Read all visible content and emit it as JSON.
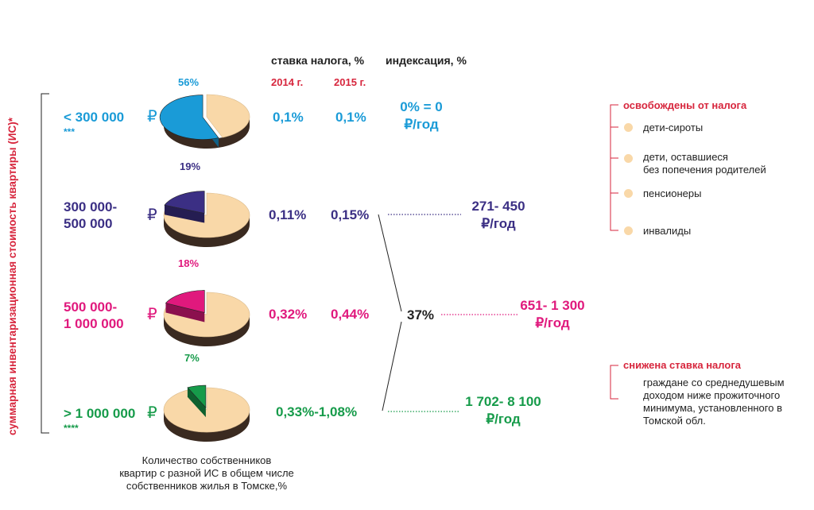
{
  "headers": {
    "rate": "ставка налога, %",
    "indexation": "индексация, %",
    "year2014": "2014 г.",
    "year2015": "2015 г."
  },
  "vertical_label": "суммарная инвентаризационная стоимость квартиры (ИС)*",
  "ruble_sign": "₽",
  "middle_percent": "37%",
  "caption_lines": [
    "Количество собственников",
    "квартир с разной ИС в общем числе",
    "собственников  жилья в Томске,%"
  ],
  "colors": {
    "cyan": "#1a9bd7",
    "navy": "#3b2f84",
    "magenta": "#e0197d",
    "green": "#169b4a",
    "peach": "#f9d8a8",
    "red": "#d7263d"
  },
  "chart_data": {
    "type": "pie",
    "rows": [
      {
        "range_lines": [
          "< 300 000"
        ],
        "stars": "***",
        "share": 56,
        "share_label": "56%",
        "rate_2014": "0,1%",
        "rate_2015": "0,1%",
        "indexation_lines": [
          "0% = 0",
          "₽/год"
        ],
        "color": "#1a9bd7"
      },
      {
        "range_lines": [
          "300 000-",
          "500 000"
        ],
        "stars": "",
        "share": 19,
        "share_label": "19%",
        "rate_2014": "0,11%",
        "rate_2015": "0,15%",
        "indexation_lines": [
          "271- 450",
          "₽/год"
        ],
        "color": "#3b2f84"
      },
      {
        "range_lines": [
          "500 000-",
          "1 000 000"
        ],
        "stars": "",
        "share": 18,
        "share_label": "18%",
        "rate_2014": "0,32%",
        "rate_2015": "0,44%",
        "indexation_lines": [
          "651- 1 300",
          "₽/год"
        ],
        "color": "#e0197d"
      },
      {
        "range_lines": [
          "> 1 000 000"
        ],
        "stars": "****",
        "share": 7,
        "share_label": "7%",
        "rate_combined": "0,33%-1,08%",
        "indexation_lines": [
          "1 702- 8 100",
          "₽/год"
        ],
        "color": "#169b4a"
      }
    ]
  },
  "exempt": {
    "title": "освобождены от налога",
    "items": [
      {
        "lines": [
          "дети-сироты"
        ]
      },
      {
        "lines": [
          "дети, оставшиеся",
          "без попечения родителей"
        ]
      },
      {
        "lines": [
          "пенсионеры"
        ]
      },
      {
        "lines": [
          "инвалиды"
        ]
      }
    ]
  },
  "reduced": {
    "title": "снижена ставка налога",
    "lines": [
      "граждане со среднедушевым",
      "доходом ниже прожиточного",
      "минимума, установленного в",
      "Томской обл."
    ]
  }
}
